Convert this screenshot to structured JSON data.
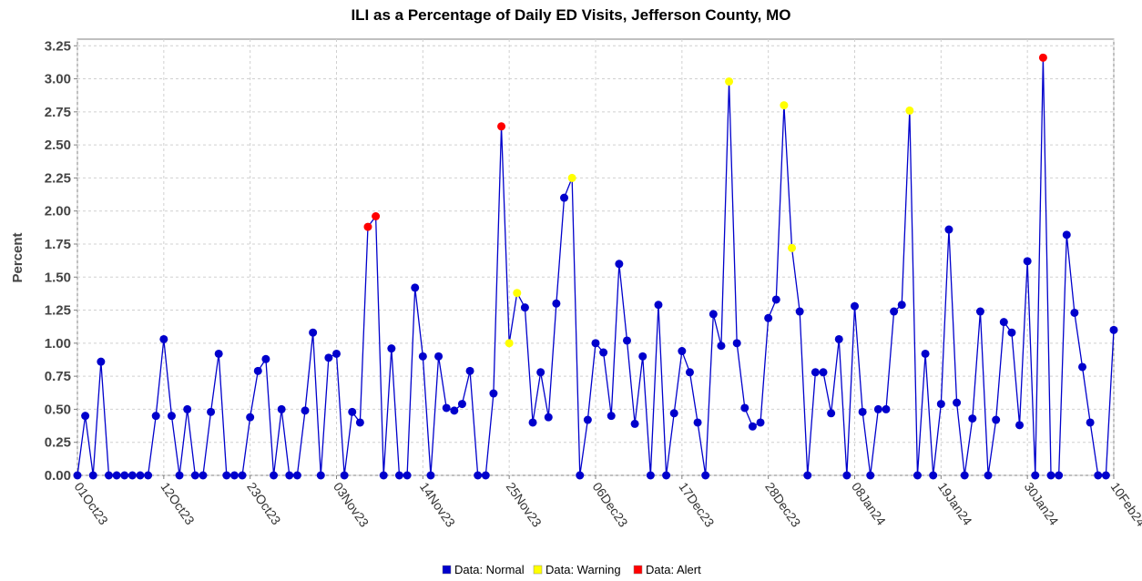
{
  "chart_data": {
    "type": "line",
    "title": "ILI as a Percentage of Daily ED Visits, Jefferson County, MO",
    "xlabel": "",
    "ylabel": "Percent",
    "ylim": [
      0,
      3.3
    ],
    "yticks": [
      "0.00",
      "0.25",
      "0.50",
      "0.75",
      "1.00",
      "1.25",
      "1.50",
      "1.75",
      "2.00",
      "2.25",
      "2.50",
      "2.75",
      "3.00",
      "3.25"
    ],
    "start_date": "2023-10-01",
    "xticks": [
      "01Oct23",
      "12Oct23",
      "23Oct23",
      "03Nov23",
      "14Nov23",
      "25Nov23",
      "06Dec23",
      "17Dec23",
      "28Dec23",
      "08Jan24",
      "19Jan24",
      "30Jan24",
      "10Feb24"
    ],
    "grid": true,
    "line_color": "#0000cc",
    "series": [
      {
        "name": "Data: Normal",
        "color": "#0000cc"
      },
      {
        "name": "Data: Warning",
        "color": "#ffff00"
      },
      {
        "name": "Data: Alert",
        "color": "#ff0000"
      }
    ],
    "points": [
      {
        "x": "2023-10-01",
        "y": 0,
        "status": "Normal"
      },
      {
        "x": "2023-10-02",
        "y": 0.45,
        "status": "Normal"
      },
      {
        "x": "2023-10-03",
        "y": 0,
        "status": "Normal"
      },
      {
        "x": "2023-10-04",
        "y": 0.86,
        "status": "Normal"
      },
      {
        "x": "2023-10-05",
        "y": 0,
        "status": "Normal"
      },
      {
        "x": "2023-10-06",
        "y": 0,
        "status": "Normal"
      },
      {
        "x": "2023-10-07",
        "y": 0,
        "status": "Normal"
      },
      {
        "x": "2023-10-08",
        "y": 0,
        "status": "Normal"
      },
      {
        "x": "2023-10-09",
        "y": 0,
        "status": "Normal"
      },
      {
        "x": "2023-10-10",
        "y": 0,
        "status": "Normal"
      },
      {
        "x": "2023-10-11",
        "y": 0.45,
        "status": "Normal"
      },
      {
        "x": "2023-10-12",
        "y": 1.03,
        "status": "Normal"
      },
      {
        "x": "2023-10-13",
        "y": 0.45,
        "status": "Normal"
      },
      {
        "x": "2023-10-14",
        "y": 0,
        "status": "Normal"
      },
      {
        "x": "2023-10-15",
        "y": 0.5,
        "status": "Normal"
      },
      {
        "x": "2023-10-16",
        "y": 0,
        "status": "Normal"
      },
      {
        "x": "2023-10-17",
        "y": 0,
        "status": "Normal"
      },
      {
        "x": "2023-10-18",
        "y": 0.48,
        "status": "Normal"
      },
      {
        "x": "2023-10-19",
        "y": 0.92,
        "status": "Normal"
      },
      {
        "x": "2023-10-20",
        "y": 0,
        "status": "Normal"
      },
      {
        "x": "2023-10-21",
        "y": 0,
        "status": "Normal"
      },
      {
        "x": "2023-10-22",
        "y": 0,
        "status": "Normal"
      },
      {
        "x": "2023-10-23",
        "y": 0.44,
        "status": "Normal"
      },
      {
        "x": "2023-10-24",
        "y": 0.79,
        "status": "Normal"
      },
      {
        "x": "2023-10-25",
        "y": 0.88,
        "status": "Normal"
      },
      {
        "x": "2023-10-26",
        "y": 0,
        "status": "Normal"
      },
      {
        "x": "2023-10-27",
        "y": 0.5,
        "status": "Normal"
      },
      {
        "x": "2023-10-28",
        "y": 0,
        "status": "Normal"
      },
      {
        "x": "2023-10-29",
        "y": 0,
        "status": "Normal"
      },
      {
        "x": "2023-10-30",
        "y": 0.49,
        "status": "Normal"
      },
      {
        "x": "2023-10-31",
        "y": 1.08,
        "status": "Normal"
      },
      {
        "x": "2023-11-01",
        "y": 0,
        "status": "Normal"
      },
      {
        "x": "2023-11-02",
        "y": 0.89,
        "status": "Normal"
      },
      {
        "x": "2023-11-03",
        "y": 0.92,
        "status": "Normal"
      },
      {
        "x": "2023-11-04",
        "y": 0,
        "status": "Normal"
      },
      {
        "x": "2023-11-05",
        "y": 0.48,
        "status": "Normal"
      },
      {
        "x": "2023-11-06",
        "y": 0.4,
        "status": "Normal"
      },
      {
        "x": "2023-11-07",
        "y": 1.88,
        "status": "Alert"
      },
      {
        "x": "2023-11-08",
        "y": 1.96,
        "status": "Alert"
      },
      {
        "x": "2023-11-09",
        "y": 0,
        "status": "Normal"
      },
      {
        "x": "2023-11-10",
        "y": 0.96,
        "status": "Normal"
      },
      {
        "x": "2023-11-11",
        "y": 0,
        "status": "Normal"
      },
      {
        "x": "2023-11-12",
        "y": 0,
        "status": "Normal"
      },
      {
        "x": "2023-11-13",
        "y": 1.42,
        "status": "Normal"
      },
      {
        "x": "2023-11-14",
        "y": 0.9,
        "status": "Normal"
      },
      {
        "x": "2023-11-15",
        "y": 0,
        "status": "Normal"
      },
      {
        "x": "2023-11-16",
        "y": 0.9,
        "status": "Normal"
      },
      {
        "x": "2023-11-17",
        "y": 0.51,
        "status": "Normal"
      },
      {
        "x": "2023-11-18",
        "y": 0.49,
        "status": "Normal"
      },
      {
        "x": "2023-11-19",
        "y": 0.54,
        "status": "Normal"
      },
      {
        "x": "2023-11-20",
        "y": 0.79,
        "status": "Normal"
      },
      {
        "x": "2023-11-21",
        "y": 0,
        "status": "Normal"
      },
      {
        "x": "2023-11-22",
        "y": 0,
        "status": "Normal"
      },
      {
        "x": "2023-11-23",
        "y": 0.62,
        "status": "Normal"
      },
      {
        "x": "2023-11-24",
        "y": 2.64,
        "status": "Alert"
      },
      {
        "x": "2023-11-25",
        "y": 1.0,
        "status": "Warning"
      },
      {
        "x": "2023-11-26",
        "y": 1.38,
        "status": "Warning"
      },
      {
        "x": "2023-11-27",
        "y": 1.27,
        "status": "Normal"
      },
      {
        "x": "2023-11-28",
        "y": 0.4,
        "status": "Normal"
      },
      {
        "x": "2023-11-29",
        "y": 0.78,
        "status": "Normal"
      },
      {
        "x": "2023-11-30",
        "y": 0.44,
        "status": "Normal"
      },
      {
        "x": "2023-12-01",
        "y": 1.3,
        "status": "Normal"
      },
      {
        "x": "2023-12-02",
        "y": 2.1,
        "status": "Normal"
      },
      {
        "x": "2023-12-03",
        "y": 2.25,
        "status": "Warning"
      },
      {
        "x": "2023-12-04",
        "y": 0,
        "status": "Normal"
      },
      {
        "x": "2023-12-05",
        "y": 0.42,
        "status": "Normal"
      },
      {
        "x": "2023-12-06",
        "y": 1.0,
        "status": "Normal"
      },
      {
        "x": "2023-12-07",
        "y": 0.93,
        "status": "Normal"
      },
      {
        "x": "2023-12-08",
        "y": 0.45,
        "status": "Normal"
      },
      {
        "x": "2023-12-09",
        "y": 1.6,
        "status": "Normal"
      },
      {
        "x": "2023-12-10",
        "y": 1.02,
        "status": "Normal"
      },
      {
        "x": "2023-12-11",
        "y": 0.39,
        "status": "Normal"
      },
      {
        "x": "2023-12-12",
        "y": 0.9,
        "status": "Normal"
      },
      {
        "x": "2023-12-13",
        "y": 0,
        "status": "Normal"
      },
      {
        "x": "2023-12-14",
        "y": 1.29,
        "status": "Normal"
      },
      {
        "x": "2023-12-15",
        "y": 0,
        "status": "Normal"
      },
      {
        "x": "2023-12-16",
        "y": 0.47,
        "status": "Normal"
      },
      {
        "x": "2023-12-17",
        "y": 0.94,
        "status": "Normal"
      },
      {
        "x": "2023-12-18",
        "y": 0.78,
        "status": "Normal"
      },
      {
        "x": "2023-12-19",
        "y": 0.4,
        "status": "Normal"
      },
      {
        "x": "2023-12-20",
        "y": 0,
        "status": "Normal"
      },
      {
        "x": "2023-12-21",
        "y": 1.22,
        "status": "Normal"
      },
      {
        "x": "2023-12-22",
        "y": 0.98,
        "status": "Normal"
      },
      {
        "x": "2023-12-23",
        "y": 2.98,
        "status": "Warning"
      },
      {
        "x": "2023-12-24",
        "y": 1.0,
        "status": "Normal"
      },
      {
        "x": "2023-12-25",
        "y": 0.51,
        "status": "Normal"
      },
      {
        "x": "2023-12-26",
        "y": 0.37,
        "status": "Normal"
      },
      {
        "x": "2023-12-27",
        "y": 0.4,
        "status": "Normal"
      },
      {
        "x": "2023-12-28",
        "y": 1.19,
        "status": "Normal"
      },
      {
        "x": "2023-12-29",
        "y": 1.33,
        "status": "Normal"
      },
      {
        "x": "2023-12-30",
        "y": 2.8,
        "status": "Warning"
      },
      {
        "x": "2023-12-31",
        "y": 1.72,
        "status": "Warning"
      },
      {
        "x": "2024-01-01",
        "y": 1.24,
        "status": "Normal"
      },
      {
        "x": "2024-01-02",
        "y": 0,
        "status": "Normal"
      },
      {
        "x": "2024-01-03",
        "y": 0.78,
        "status": "Normal"
      },
      {
        "x": "2024-01-04",
        "y": 0.78,
        "status": "Normal"
      },
      {
        "x": "2024-01-05",
        "y": 0.47,
        "status": "Normal"
      },
      {
        "x": "2024-01-06",
        "y": 1.03,
        "status": "Normal"
      },
      {
        "x": "2024-01-07",
        "y": 0,
        "status": "Normal"
      },
      {
        "x": "2024-01-08",
        "y": 1.28,
        "status": "Normal"
      },
      {
        "x": "2024-01-09",
        "y": 0.48,
        "status": "Normal"
      },
      {
        "x": "2024-01-10",
        "y": 0,
        "status": "Normal"
      },
      {
        "x": "2024-01-11",
        "y": 0.5,
        "status": "Normal"
      },
      {
        "x": "2024-01-12",
        "y": 0.5,
        "status": "Normal"
      },
      {
        "x": "2024-01-13",
        "y": 1.24,
        "status": "Normal"
      },
      {
        "x": "2024-01-14",
        "y": 1.29,
        "status": "Normal"
      },
      {
        "x": "2024-01-15",
        "y": 2.76,
        "status": "Warning"
      },
      {
        "x": "2024-01-16",
        "y": 0,
        "status": "Normal"
      },
      {
        "x": "2024-01-17",
        "y": 0.92,
        "status": "Normal"
      },
      {
        "x": "2024-01-18",
        "y": 0,
        "status": "Normal"
      },
      {
        "x": "2024-01-19",
        "y": 0.54,
        "status": "Normal"
      },
      {
        "x": "2024-01-20",
        "y": 1.86,
        "status": "Normal"
      },
      {
        "x": "2024-01-21",
        "y": 0.55,
        "status": "Normal"
      },
      {
        "x": "2024-01-22",
        "y": 0,
        "status": "Normal"
      },
      {
        "x": "2024-01-23",
        "y": 0.43,
        "status": "Normal"
      },
      {
        "x": "2024-01-24",
        "y": 1.24,
        "status": "Normal"
      },
      {
        "x": "2024-01-25",
        "y": 0,
        "status": "Normal"
      },
      {
        "x": "2024-01-26",
        "y": 0.42,
        "status": "Normal"
      },
      {
        "x": "2024-01-27",
        "y": 1.16,
        "status": "Normal"
      },
      {
        "x": "2024-01-28",
        "y": 1.08,
        "status": "Normal"
      },
      {
        "x": "2024-01-29",
        "y": 0.38,
        "status": "Normal"
      },
      {
        "x": "2024-01-30",
        "y": 1.62,
        "status": "Normal"
      },
      {
        "x": "2024-01-31",
        "y": 0,
        "status": "Normal"
      },
      {
        "x": "2024-02-01",
        "y": 3.16,
        "status": "Alert"
      },
      {
        "x": "2024-02-02",
        "y": 0,
        "status": "Normal"
      },
      {
        "x": "2024-02-03",
        "y": 0,
        "status": "Normal"
      },
      {
        "x": "2024-02-04",
        "y": 1.82,
        "status": "Normal"
      },
      {
        "x": "2024-02-05",
        "y": 1.23,
        "status": "Normal"
      },
      {
        "x": "2024-02-06",
        "y": 0.82,
        "status": "Normal"
      },
      {
        "x": "2024-02-07",
        "y": 0.4,
        "status": "Normal"
      },
      {
        "x": "2024-02-08",
        "y": 0,
        "status": "Normal"
      },
      {
        "x": "2024-02-09",
        "y": 0,
        "status": "Normal"
      },
      {
        "x": "2024-02-10",
        "y": 1.1,
        "status": "Normal"
      }
    ]
  }
}
